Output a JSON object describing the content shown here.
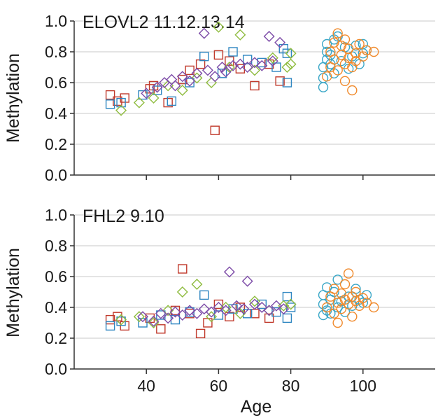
{
  "chart_data": [
    {
      "type": "scatter",
      "title": "ELOVL2  11.12.13.14",
      "xlabel": "",
      "ylabel": "Methylation",
      "xlim": [
        20,
        120
      ],
      "ylim": [
        0.0,
        1.0
      ],
      "xticks": [
        40,
        60,
        80,
        100
      ],
      "yticks": [
        0.0,
        0.2,
        0.4,
        0.6,
        0.8,
        1.0
      ],
      "ytick_labels": [
        "0.0",
        "0.2",
        "0.4",
        "0.6",
        "0.8",
        "1.0"
      ],
      "xtick_labels_shown": false,
      "grid": "horizontal",
      "legend": "none",
      "series": [
        {
          "color": "#c0392b",
          "marker": "square",
          "points": [
            [
              30,
              0.52
            ],
            [
              32,
              0.48
            ],
            [
              34,
              0.5
            ],
            [
              41,
              0.56
            ],
            [
              42,
              0.58
            ],
            [
              46,
              0.47
            ],
            [
              50,
              0.62
            ],
            [
              52,
              0.68
            ],
            [
              55,
              0.72
            ],
            [
              59,
              0.29
            ],
            [
              60,
              0.78
            ],
            [
              63,
              0.74
            ],
            [
              66,
              0.69
            ],
            [
              70,
              0.58
            ],
            [
              74,
              0.72
            ],
            [
              77,
              0.61
            ]
          ]
        },
        {
          "color": "#2e86c1",
          "marker": "square",
          "points": [
            [
              30,
              0.46
            ],
            [
              33,
              0.47
            ],
            [
              39,
              0.52
            ],
            [
              43,
              0.55
            ],
            [
              47,
              0.48
            ],
            [
              52,
              0.6
            ],
            [
              56,
              0.77
            ],
            [
              61,
              0.66
            ],
            [
              64,
              0.8
            ],
            [
              68,
              0.75
            ],
            [
              72,
              0.73
            ],
            [
              76,
              0.7
            ],
            [
              78,
              0.82
            ],
            [
              79,
              0.79
            ],
            [
              79,
              0.6
            ]
          ]
        },
        {
          "color": "#8fbc3f",
          "marker": "diamond",
          "points": [
            [
              33,
              0.42
            ],
            [
              38,
              0.47
            ],
            [
              42,
              0.5
            ],
            [
              46,
              0.58
            ],
            [
              50,
              0.55
            ],
            [
              54,
              0.63
            ],
            [
              58,
              0.6
            ],
            [
              60,
              0.96
            ],
            [
              63,
              0.7
            ],
            [
              66,
              0.91
            ],
            [
              70,
              0.68
            ],
            [
              75,
              0.76
            ],
            [
              79,
              0.7
            ],
            [
              80,
              0.72
            ],
            [
              80,
              0.79
            ]
          ]
        },
        {
          "color": "#7d4ca8",
          "marker": "diamond",
          "points": [
            [
              40,
              0.53
            ],
            [
              43,
              0.57
            ],
            [
              45,
              0.6
            ],
            [
              47,
              0.62
            ],
            [
              48,
              0.58
            ],
            [
              50,
              0.64
            ],
            [
              52,
              0.61
            ],
            [
              54,
              0.66
            ],
            [
              56,
              0.92
            ],
            [
              57,
              0.68
            ],
            [
              59,
              0.64
            ],
            [
              61,
              0.7
            ],
            [
              62,
              0.67
            ],
            [
              64,
              0.71
            ],
            [
              66,
              0.72
            ],
            [
              68,
              0.7
            ],
            [
              70,
              0.73
            ],
            [
              72,
              0.71
            ],
            [
              74,
              0.9
            ],
            [
              75,
              0.74
            ],
            [
              77,
              0.86
            ]
          ]
        },
        {
          "color": "#3aa7c7",
          "marker": "circle",
          "points": [
            [
              89,
              0.57
            ],
            [
              89,
              0.63
            ],
            [
              89,
              0.7
            ],
            [
              90,
              0.75
            ],
            [
              90,
              0.8
            ],
            [
              90,
              0.85
            ],
            [
              91,
              0.78
            ],
            [
              91,
              0.72
            ],
            [
              92,
              0.66
            ],
            [
              92,
              0.88
            ],
            [
              93,
              0.9
            ],
            [
              94,
              0.74
            ],
            [
              95,
              0.83
            ],
            [
              96,
              0.69
            ],
            [
              97,
              0.77
            ],
            [
              98,
              0.84
            ],
            [
              99,
              0.72
            ],
            [
              100,
              0.79
            ],
            [
              100,
              0.85
            ],
            [
              101,
              0.81
            ]
          ]
        },
        {
          "color": "#f08a2c",
          "marker": "circle",
          "points": [
            [
              90,
              0.64
            ],
            [
              91,
              0.7
            ],
            [
              91,
              0.8
            ],
            [
              92,
              0.86
            ],
            [
              92,
              0.75
            ],
            [
              93,
              0.68
            ],
            [
              93,
              0.92
            ],
            [
              94,
              0.78
            ],
            [
              94,
              0.84
            ],
            [
              95,
              0.72
            ],
            [
              95,
              0.61
            ],
            [
              95,
              0.88
            ],
            [
              96,
              0.76
            ],
            [
              96,
              0.82
            ],
            [
              97,
              0.7
            ],
            [
              97,
              0.55
            ],
            [
              98,
              0.79
            ],
            [
              98,
              0.74
            ],
            [
              99,
              0.85
            ],
            [
              100,
              0.77
            ],
            [
              101,
              0.81
            ],
            [
              103,
              0.8
            ]
          ]
        }
      ]
    },
    {
      "type": "scatter",
      "title": "FHL2  9.10",
      "xlabel": "Age",
      "ylabel": "Methylation",
      "xlim": [
        20,
        120
      ],
      "ylim": [
        0.0,
        1.0
      ],
      "xticks": [
        40,
        60,
        80,
        100
      ],
      "xtick_labels": [
        "40",
        "60",
        "80",
        "100"
      ],
      "yticks": [
        0.0,
        0.2,
        0.4,
        0.6,
        0.8,
        1.0
      ],
      "ytick_labels": [
        "0.0",
        "0.2",
        "0.4",
        "0.6",
        "0.8",
        "1.0"
      ],
      "xtick_labels_shown": true,
      "grid": "horizontal",
      "legend": "none",
      "series": [
        {
          "color": "#c0392b",
          "marker": "square",
          "points": [
            [
              30,
              0.32
            ],
            [
              32,
              0.34
            ],
            [
              34,
              0.28
            ],
            [
              41,
              0.33
            ],
            [
              44,
              0.26
            ],
            [
              48,
              0.38
            ],
            [
              50,
              0.65
            ],
            [
              52,
              0.36
            ],
            [
              55,
              0.23
            ],
            [
              57,
              0.3
            ],
            [
              60,
              0.42
            ],
            [
              63,
              0.34
            ],
            [
              66,
              0.4
            ],
            [
              70,
              0.36
            ],
            [
              74,
              0.33
            ]
          ]
        },
        {
          "color": "#2e86c1",
          "marker": "square",
          "points": [
            [
              30,
              0.28
            ],
            [
              33,
              0.31
            ],
            [
              39,
              0.3
            ],
            [
              44,
              0.35
            ],
            [
              48,
              0.32
            ],
            [
              52,
              0.37
            ],
            [
              56,
              0.48
            ],
            [
              60,
              0.35
            ],
            [
              64,
              0.39
            ],
            [
              68,
              0.36
            ],
            [
              72,
              0.42
            ],
            [
              76,
              0.37
            ],
            [
              79,
              0.47
            ],
            [
              79,
              0.33
            ],
            [
              80,
              0.4
            ]
          ]
        },
        {
          "color": "#8fbc3f",
          "marker": "diamond",
          "points": [
            [
              33,
              0.32
            ],
            [
              38,
              0.34
            ],
            [
              42,
              0.3
            ],
            [
              46,
              0.38
            ],
            [
              50,
              0.5
            ],
            [
              54,
              0.55
            ],
            [
              58,
              0.34
            ],
            [
              62,
              0.4
            ],
            [
              66,
              0.36
            ],
            [
              70,
              0.44
            ],
            [
              74,
              0.38
            ],
            [
              78,
              0.41
            ],
            [
              80,
              0.42
            ]
          ]
        },
        {
          "color": "#7d4ca8",
          "marker": "diamond",
          "points": [
            [
              39,
              0.34
            ],
            [
              42,
              0.31
            ],
            [
              44,
              0.36
            ],
            [
              46,
              0.33
            ],
            [
              48,
              0.37
            ],
            [
              50,
              0.35
            ],
            [
              52,
              0.38
            ],
            [
              54,
              0.36
            ],
            [
              56,
              0.39
            ],
            [
              58,
              0.37
            ],
            [
              60,
              0.4
            ],
            [
              62,
              0.38
            ],
            [
              63,
              0.63
            ],
            [
              65,
              0.41
            ],
            [
              67,
              0.39
            ],
            [
              68,
              0.57
            ],
            [
              70,
              0.42
            ],
            [
              72,
              0.4
            ],
            [
              74,
              0.38
            ],
            [
              76,
              0.41
            ],
            [
              78,
              0.39
            ]
          ]
        },
        {
          "color": "#3aa7c7",
          "marker": "circle",
          "points": [
            [
              89,
              0.35
            ],
            [
              89,
              0.42
            ],
            [
              89,
              0.48
            ],
            [
              90,
              0.38
            ],
            [
              90,
              0.53
            ],
            [
              91,
              0.45
            ],
            [
              91,
              0.36
            ],
            [
              92,
              0.5
            ],
            [
              93,
              0.4
            ],
            [
              93,
              0.58
            ],
            [
              94,
              0.44
            ],
            [
              95,
              0.37
            ],
            [
              96,
              0.47
            ],
            [
              97,
              0.41
            ],
            [
              98,
              0.52
            ],
            [
              99,
              0.45
            ],
            [
              100,
              0.43
            ],
            [
              101,
              0.48
            ]
          ]
        },
        {
          "color": "#f08a2c",
          "marker": "circle",
          "points": [
            [
              90,
              0.4
            ],
            [
              91,
              0.47
            ],
            [
              92,
              0.36
            ],
            [
              92,
              0.52
            ],
            [
              93,
              0.43
            ],
            [
              93,
              0.3
            ],
            [
              94,
              0.49
            ],
            [
              94,
              0.39
            ],
            [
              95,
              0.45
            ],
            [
              95,
              0.55
            ],
            [
              96,
              0.42
            ],
            [
              96,
              0.62
            ],
            [
              97,
              0.47
            ],
            [
              97,
              0.34
            ],
            [
              98,
              0.5
            ],
            [
              98,
              0.44
            ],
            [
              99,
              0.41
            ],
            [
              100,
              0.46
            ],
            [
              101,
              0.43
            ],
            [
              103,
              0.4
            ]
          ]
        }
      ]
    }
  ]
}
